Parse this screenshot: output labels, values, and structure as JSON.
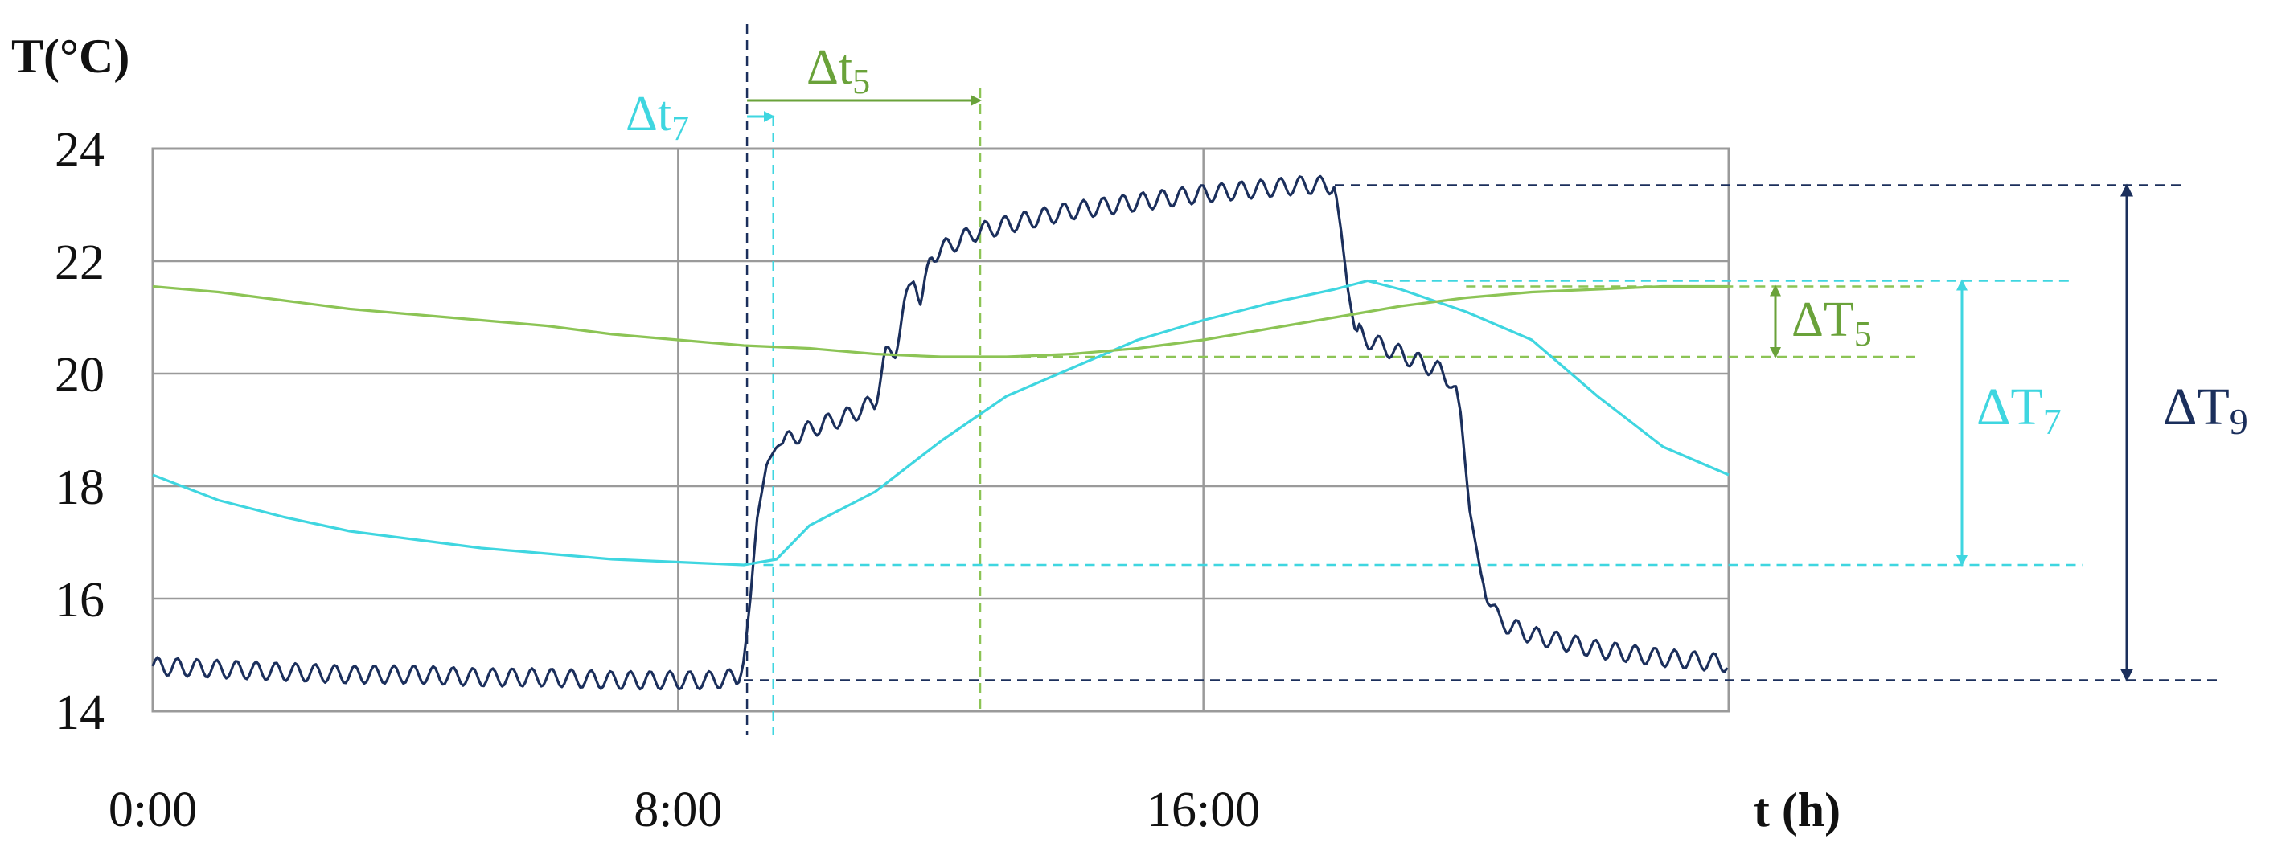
{
  "chart_data": {
    "type": "line",
    "ylabel": "T(°C)",
    "xlabel": "t (h)",
    "xlim": [
      0,
      24
    ],
    "ylim": [
      14,
      24
    ],
    "x_ticks": [
      {
        "value": 0,
        "label": "0:00"
      },
      {
        "value": 8,
        "label": "8:00"
      },
      {
        "value": 16,
        "label": "16:00"
      }
    ],
    "y_ticks": [
      {
        "value": 14,
        "label": "14"
      },
      {
        "value": 16,
        "label": "16"
      },
      {
        "value": 18,
        "label": "18"
      },
      {
        "value": 20,
        "label": "20"
      },
      {
        "value": 22,
        "label": "22"
      },
      {
        "value": 24,
        "label": "24"
      }
    ],
    "grid": true,
    "colors": {
      "series9": "#1b2f5c",
      "series7": "#3fd6e0",
      "series5": "#8cc455",
      "grid": "#9a9a9a"
    },
    "series": [
      {
        "color": "#1b2f5c",
        "x": [
          0,
          1,
          2,
          3,
          4,
          5,
          6,
          7,
          8,
          8.5,
          8.9,
          9.0,
          9.1,
          9.2,
          9.35,
          9.5,
          9.8,
          10.2,
          10.6,
          11.0,
          11.15,
          11.3,
          11.45,
          11.6,
          11.7,
          11.85,
          12.0,
          12.5,
          13,
          14,
          15,
          16,
          17,
          17.5,
          18.0,
          18.1,
          18.2,
          18.3,
          18.5,
          19.0,
          19.4,
          19.6,
          19.75,
          19.9,
          20.05,
          20.25,
          20.5,
          21,
          22,
          23,
          24
        ],
        "y": [
          14.8,
          14.75,
          14.7,
          14.65,
          14.65,
          14.6,
          14.6,
          14.55,
          14.55,
          14.55,
          14.6,
          14.9,
          16.0,
          17.4,
          18.4,
          18.7,
          18.9,
          19.1,
          19.25,
          19.5,
          20.3,
          20.4,
          21.2,
          21.8,
          21.2,
          22.1,
          22.2,
          22.5,
          22.65,
          22.9,
          23.05,
          23.2,
          23.3,
          23.35,
          23.35,
          22.5,
          21.5,
          20.8,
          20.6,
          20.35,
          20.15,
          20.05,
          19.9,
          19.5,
          17.6,
          16.3,
          15.6,
          15.35,
          15.1,
          14.95,
          14.85
        ]
      },
      {
        "color": "#3fd6e0",
        "x": [
          0,
          1,
          2,
          3,
          4,
          5,
          6,
          7,
          8,
          9.0,
          9.5,
          10,
          11,
          12,
          13,
          14,
          15,
          16,
          17,
          18,
          18.5,
          19,
          20,
          21,
          22,
          23,
          24
        ],
        "y": [
          18.2,
          17.75,
          17.45,
          17.2,
          17.05,
          16.9,
          16.8,
          16.7,
          16.65,
          16.6,
          16.7,
          17.3,
          17.9,
          18.8,
          19.6,
          20.1,
          20.6,
          20.95,
          21.25,
          21.5,
          21.65,
          21.5,
          21.1,
          20.6,
          19.6,
          18.7,
          18.2
        ]
      },
      {
        "color": "#8cc455",
        "x": [
          0,
          1,
          2,
          3,
          4,
          5,
          6,
          7,
          8,
          9,
          10,
          11,
          12,
          13,
          14,
          15,
          16,
          17,
          18,
          19,
          20,
          21,
          22,
          23,
          24
        ],
        "y": [
          21.55,
          21.45,
          21.3,
          21.15,
          21.05,
          20.95,
          20.85,
          20.7,
          20.6,
          20.5,
          20.45,
          20.35,
          20.3,
          20.3,
          20.35,
          20.45,
          20.6,
          20.8,
          21.0,
          21.2,
          21.35,
          21.45,
          21.5,
          21.55,
          21.55
        ]
      }
    ],
    "annotations": [
      {
        "label": "Δt",
        "sub": "7",
        "color": "#3fd6e0"
      },
      {
        "label": "Δt",
        "sub": "5",
        "color": "#6aa23a"
      },
      {
        "label": "ΔT",
        "sub": "5",
        "color": "#6aa23a"
      },
      {
        "label": "ΔT",
        "sub": "7",
        "color": "#3fd6e0"
      },
      {
        "label": "ΔT",
        "sub": "9",
        "color": "#1b2f5c"
      }
    ]
  }
}
